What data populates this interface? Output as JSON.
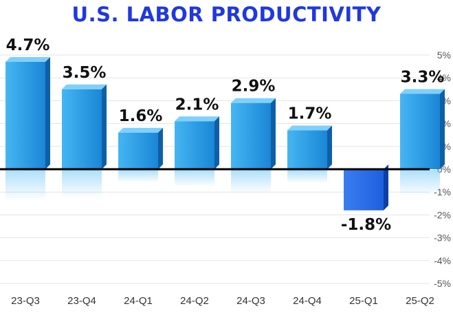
{
  "title": "U.S. LABOR PRODUCTIVITY",
  "colors": {
    "title": "#1f38e0",
    "bar_front_light": "#45b6f2",
    "bar_front_dark": "#1a86d6",
    "bar_side": "#0f5fa6",
    "bar_top": "#7fd0fb",
    "negative_front": "#1f5fe0",
    "zero_line": "#000000",
    "grid": "#e3e3e3"
  },
  "chart_data": {
    "type": "bar",
    "categories": [
      "23-Q3",
      "23-Q4",
      "24-Q1",
      "24-Q2",
      "24-Q3",
      "24-Q4",
      "25-Q1",
      "25-Q2"
    ],
    "values": [
      4.7,
      3.5,
      1.6,
      2.1,
      2.9,
      1.7,
      -1.8,
      3.3
    ],
    "data_labels": [
      "4.7%",
      "3.5%",
      "1.6%",
      "2.1%",
      "2.9%",
      "1.7%",
      "-1.8%",
      "3.3%"
    ],
    "title": "U.S. LABOR PRODUCTIVITY",
    "xlabel": "",
    "ylabel": "",
    "ylim": [
      -5,
      5
    ],
    "yticks": [
      5,
      4,
      3,
      2,
      1,
      0,
      -1,
      -2,
      -3,
      -4,
      -5
    ],
    "ytick_labels": [
      "5%",
      "4%",
      "3%",
      "2%",
      "1%",
      "0%",
      "-1%",
      "-2%",
      "-3%",
      "-4%",
      "-5%"
    ],
    "y_axis_position": "right",
    "grid": true
  }
}
